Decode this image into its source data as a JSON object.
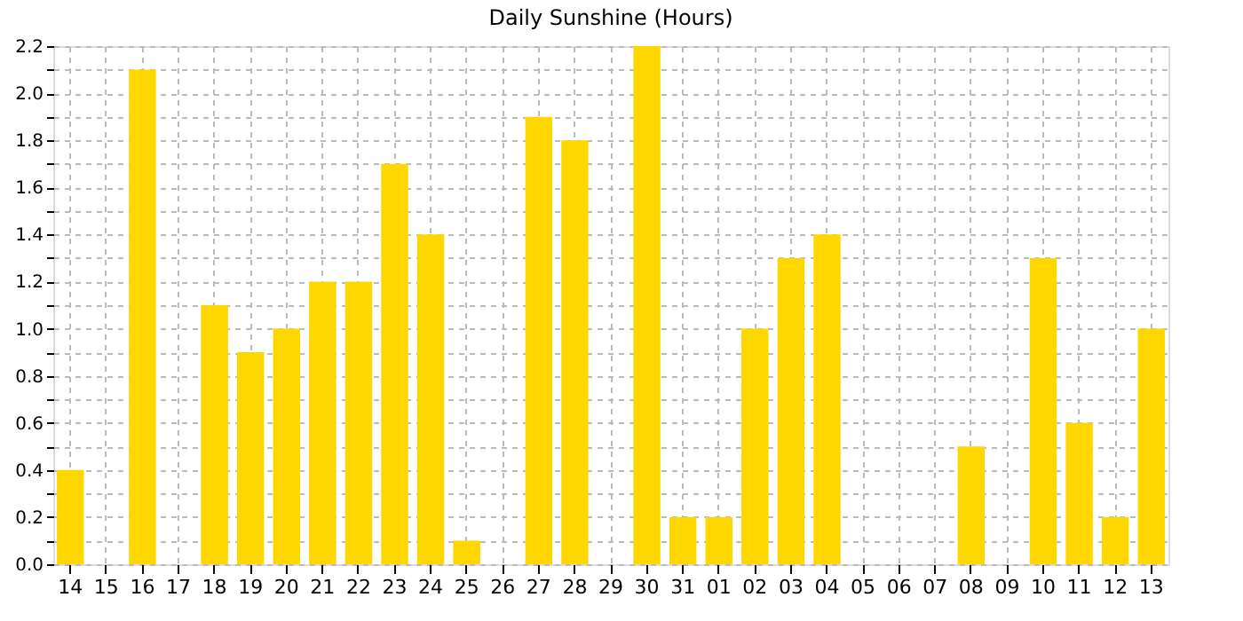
{
  "chart_data": {
    "type": "bar",
    "title": "Daily Sunshine (Hours)",
    "categories": [
      "14",
      "15",
      "16",
      "17",
      "18",
      "19",
      "20",
      "21",
      "22",
      "23",
      "24",
      "25",
      "26",
      "27",
      "28",
      "29",
      "30",
      "31",
      "01",
      "02",
      "03",
      "04",
      "05",
      "06",
      "07",
      "08",
      "09",
      "10",
      "11",
      "12",
      "13"
    ],
    "values": [
      0.4,
      0,
      2.1,
      0,
      1.1,
      0.9,
      1.0,
      1.2,
      1.2,
      1.7,
      1.4,
      0.1,
      0,
      1.9,
      1.8,
      0,
      2.2,
      0.2,
      0.2,
      1.0,
      1.3,
      1.4,
      0,
      0,
      0,
      0.5,
      0,
      1.3,
      0.6,
      0.2,
      1.0
    ],
    "color": "#ffd700",
    "ylim": [
      0,
      2.2
    ],
    "yticks": [
      {
        "value": 0,
        "label": "0.0"
      },
      {
        "value": 0.1,
        "label": null
      },
      {
        "value": 0.2,
        "label": "0.2"
      },
      {
        "value": 0.3,
        "label": null
      },
      {
        "value": 0.4,
        "label": "0.4"
      },
      {
        "value": 0.5,
        "label": null
      },
      {
        "value": 0.6,
        "label": "0.6"
      },
      {
        "value": 0.7,
        "label": null
      },
      {
        "value": 0.8,
        "label": "0.8"
      },
      {
        "value": 0.9,
        "label": null
      },
      {
        "value": 1,
        "label": "1.0"
      },
      {
        "value": 1.1,
        "label": null
      },
      {
        "value": 1.2,
        "label": "1.2"
      },
      {
        "value": 1.3,
        "label": null
      },
      {
        "value": 1.4,
        "label": "1.4"
      },
      {
        "value": 1.5,
        "label": null
      },
      {
        "value": 1.6,
        "label": "1.6"
      },
      {
        "value": 1.7,
        "label": null
      },
      {
        "value": 1.8,
        "label": "1.8"
      },
      {
        "value": 1.9,
        "label": null
      },
      {
        "value": 2,
        "label": "2.0"
      },
      {
        "value": 2.1,
        "label": null
      },
      {
        "value": 2.2,
        "label": "2.2"
      }
    ],
    "grid": true
  }
}
